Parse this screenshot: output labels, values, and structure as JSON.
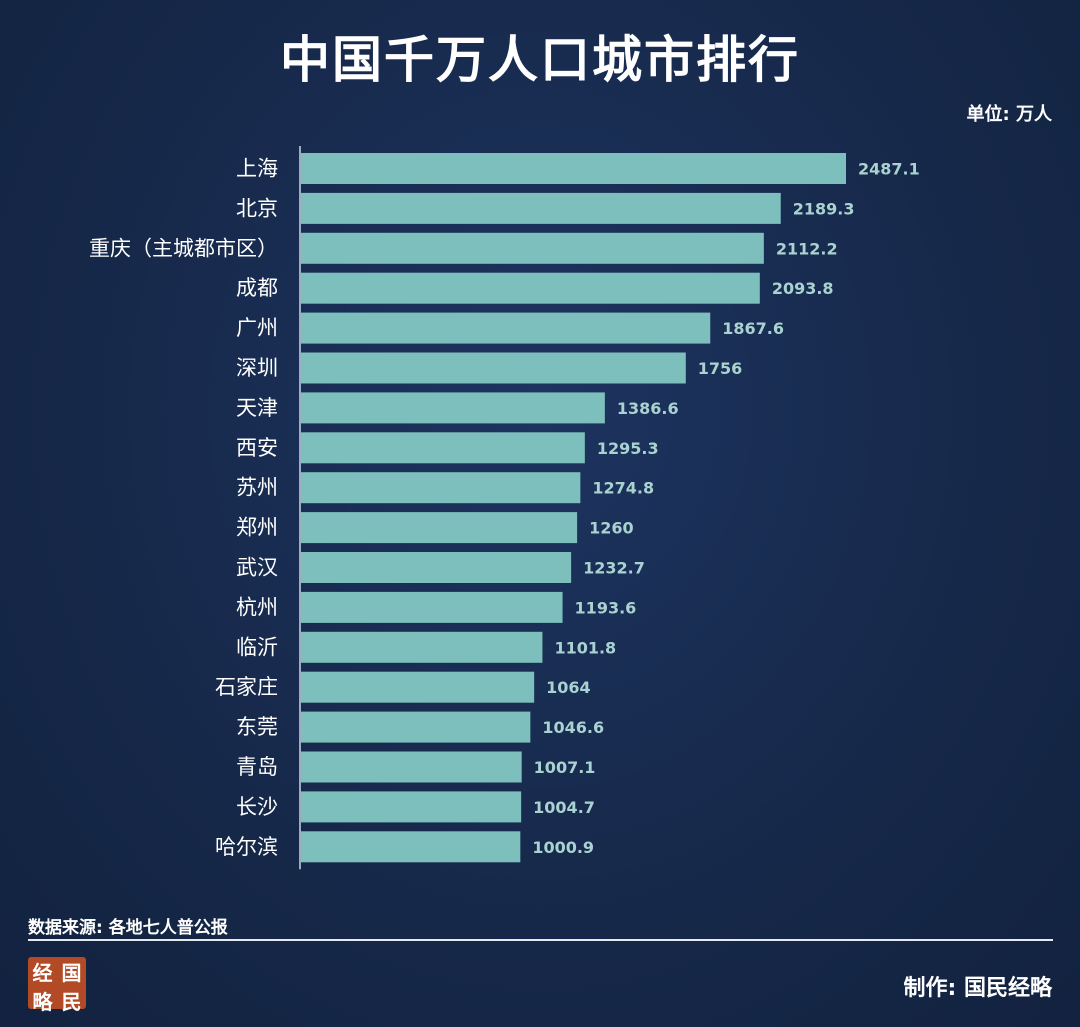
{
  "title": "中国千万人口城市排行",
  "unit": "单位: 万人",
  "source": "数据来源: 各地七人普公报",
  "maker": "制作: 国民经略",
  "logo_text": [
    "经",
    "国",
    "略",
    "民"
  ],
  "colors": {
    "background": "#172a4f",
    "bar": "#7dbfbc",
    "value_label": "#a9d2d0",
    "text": "#ffffff",
    "logo": "#b14a25"
  },
  "chart_data": {
    "type": "bar",
    "orientation": "horizontal",
    "title": "中国千万人口城市排行",
    "unit": "单位: 万人",
    "categories": [
      "上海",
      "北京",
      "重庆（主城都市区）",
      "成都",
      "广州",
      "深圳",
      "天津",
      "西安",
      "苏州",
      "郑州",
      "武汉",
      "杭州",
      "临沂",
      "石家庄",
      "东莞",
      "青岛",
      "长沙",
      "哈尔滨"
    ],
    "values": [
      2487.1,
      2189.3,
      2112.2,
      2093.8,
      1867.6,
      1756,
      1386.6,
      1295.3,
      1274.8,
      1260,
      1232.7,
      1193.6,
      1101.8,
      1064,
      1046.6,
      1007.1,
      1004.7,
      1000.9
    ],
    "value_labels": [
      "2487.1",
      "2189.3",
      "2112.2",
      "2093.8",
      "1867.6",
      "1756",
      "1386.6",
      "1295.3",
      "1274.8",
      "1260",
      "1232.7",
      "1193.6",
      "1101.8",
      "1064",
      "1046.6",
      "1007.1",
      "1004.7",
      "1000.9"
    ],
    "xlim": [
      0,
      2487.1
    ],
    "grid": false,
    "legend": "none"
  }
}
